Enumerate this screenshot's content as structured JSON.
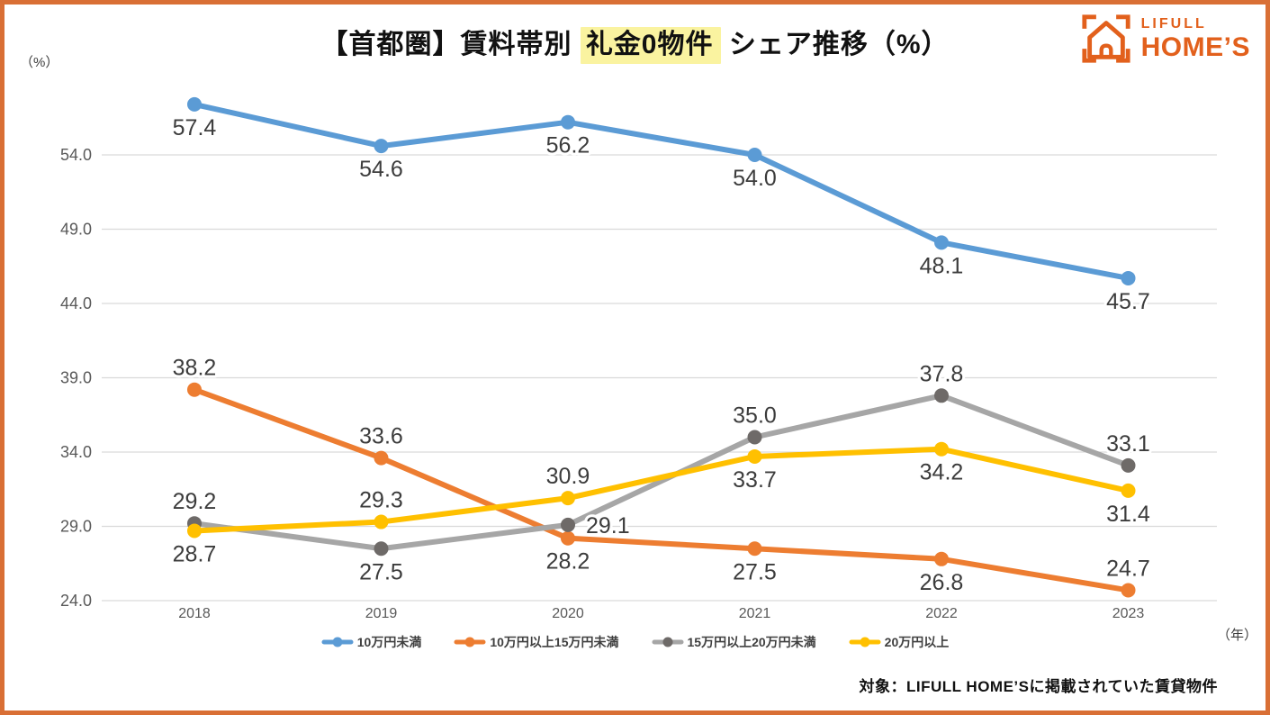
{
  "page": {
    "border_color": "#D96F35",
    "background_color": "#FFFFFF"
  },
  "header": {
    "title_prefix": "【首都圏】賃料帯別 ",
    "title_highlight": "礼金0物件",
    "title_suffix": " シェア推移（%）",
    "highlight_color": "#FAF3A0",
    "unit_label": "（%）"
  },
  "logo": {
    "brand_top": "LIFULL",
    "brand_bottom": "HOME’S",
    "color": "#E2601C",
    "icon": "house-in-viewfinder-icon"
  },
  "chart_data": {
    "type": "line",
    "title": "【首都圏】賃料帯別 礼金0物件 シェア推移（%）",
    "x": [
      "2018",
      "2019",
      "2020",
      "2021",
      "2022",
      "2023"
    ],
    "xlabel": "（年）",
    "ylabel": "（%）",
    "y_ticks": [
      54.0,
      49.0,
      44.0,
      39.0,
      34.0,
      29.0,
      24.0
    ],
    "ylim": [
      22.0,
      59.5
    ],
    "grid": true,
    "grid_color": "#D9D9D9",
    "axis_text_color": "#595959",
    "label_color": "#3C3C3C",
    "legend_position": "bottom",
    "series": [
      {
        "name": "10万円未満",
        "color": "#5B9BD5",
        "values": [
          57.4,
          54.6,
          56.2,
          54.0,
          48.1,
          45.7
        ],
        "label_pos": [
          "below",
          "below",
          "below",
          "below",
          "below",
          "below"
        ]
      },
      {
        "name": "10万円以上15万円未満",
        "color": "#ED7D31",
        "values": [
          38.2,
          33.6,
          28.2,
          27.5,
          26.8,
          24.7
        ],
        "label_pos": [
          "above",
          "above",
          "below",
          "below",
          "below",
          "above"
        ]
      },
      {
        "name": "15万円以上20万円未満",
        "color": "#A6A6A6",
        "marker_color": "#6E6A68",
        "values": [
          29.2,
          27.5,
          29.1,
          35.0,
          37.8,
          33.1
        ],
        "label_pos": [
          "above",
          "below",
          "right",
          "above",
          "above",
          "above"
        ]
      },
      {
        "name": "20万円以上",
        "color": "#FFC000",
        "values": [
          28.7,
          29.3,
          30.9,
          33.7,
          34.2,
          31.4
        ],
        "label_pos": [
          "below",
          "above",
          "above",
          "below",
          "below",
          "below"
        ]
      }
    ]
  },
  "footer": {
    "note": "対象：LIFULL HOME’Sに掲載されていた賃貸物件"
  }
}
